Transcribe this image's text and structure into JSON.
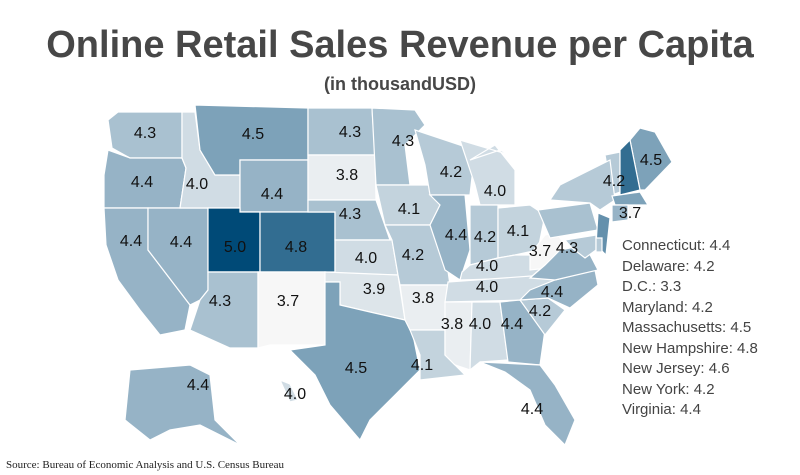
{
  "title": "Online Retail Sales Revenue per Capita",
  "subtitle": "(in thousandUSD)",
  "source": "Source: Bureau of Economic Analysis and U.S. Census Bureau",
  "colors": {
    "low": "#f7f7f7",
    "mid": "#a3bccd",
    "high": "#004a77",
    "stroke": "#ffffff"
  },
  "chart_data": {
    "type": "choropleth",
    "unit": "thousand USD",
    "value_range": [
      3.3,
      5.0
    ],
    "states": [
      {
        "state": "WA",
        "value": 4.3
      },
      {
        "state": "OR",
        "value": 4.4
      },
      {
        "state": "CA",
        "value": 4.4
      },
      {
        "state": "NV",
        "value": 4.4
      },
      {
        "state": "ID",
        "value": 4.0
      },
      {
        "state": "MT",
        "value": 4.5
      },
      {
        "state": "WY",
        "value": 4.4
      },
      {
        "state": "UT",
        "value": 5.0
      },
      {
        "state": "CO",
        "value": 4.8
      },
      {
        "state": "AZ",
        "value": 4.3
      },
      {
        "state": "NM",
        "value": 3.7
      },
      {
        "state": "ND",
        "value": 4.3
      },
      {
        "state": "SD",
        "value": 3.8
      },
      {
        "state": "NE",
        "value": 4.3
      },
      {
        "state": "KS",
        "value": 4.0
      },
      {
        "state": "OK",
        "value": 3.9
      },
      {
        "state": "TX",
        "value": 4.5
      },
      {
        "state": "MN",
        "value": 4.3
      },
      {
        "state": "IA",
        "value": 4.1
      },
      {
        "state": "MO",
        "value": 4.2
      },
      {
        "state": "AR",
        "value": 3.8
      },
      {
        "state": "LA",
        "value": 4.1
      },
      {
        "state": "WI",
        "value": 4.2
      },
      {
        "state": "IL",
        "value": 4.4
      },
      {
        "state": "MI",
        "value": 4.0
      },
      {
        "state": "IN",
        "value": 4.2
      },
      {
        "state": "OH",
        "value": 4.1
      },
      {
        "state": "KY",
        "value": 4.0
      },
      {
        "state": "TN",
        "value": 4.0
      },
      {
        "state": "MS",
        "value": 3.8
      },
      {
        "state": "AL",
        "value": 4.0
      },
      {
        "state": "GA",
        "value": 4.4
      },
      {
        "state": "FL",
        "value": 4.4
      },
      {
        "state": "SC",
        "value": 4.2
      },
      {
        "state": "NC",
        "value": 4.4
      },
      {
        "state": "WV",
        "value": 3.7
      },
      {
        "state": "PA",
        "value": 4.3
      },
      {
        "state": "VT",
        "value": 4.2
      },
      {
        "state": "ME",
        "value": 4.5
      },
      {
        "state": "RI",
        "value": 3.7
      },
      {
        "state": "AK",
        "value": 4.4
      },
      {
        "state": "HI",
        "value": 4.0
      },
      {
        "state": "VA",
        "value": 4.4,
        "unlabeled": true
      },
      {
        "state": "NY",
        "value": 4.2,
        "unlabeled": true
      },
      {
        "state": "NH",
        "value": 4.8,
        "unlabeled": true
      },
      {
        "state": "NJ",
        "value": 4.6,
        "unlabeled": true
      },
      {
        "state": "MA",
        "value": 4.5,
        "unlabeled": true
      },
      {
        "state": "CT",
        "value": 4.4,
        "unlabeled": true
      },
      {
        "state": "MD",
        "value": 4.2,
        "unlabeled": true
      },
      {
        "state": "DE",
        "value": 4.2,
        "unlabeled": true
      }
    ],
    "callouts": [
      "Connecticut: 4.4",
      "Delaware: 4.2",
      "D.C.: 3.3",
      "Maryland: 4.2",
      "Massachusetts: 4.5",
      "New Hampshire: 4.8",
      "New Jersey: 4.6",
      "New York: 4.2",
      "Virginia: 4.4"
    ]
  }
}
